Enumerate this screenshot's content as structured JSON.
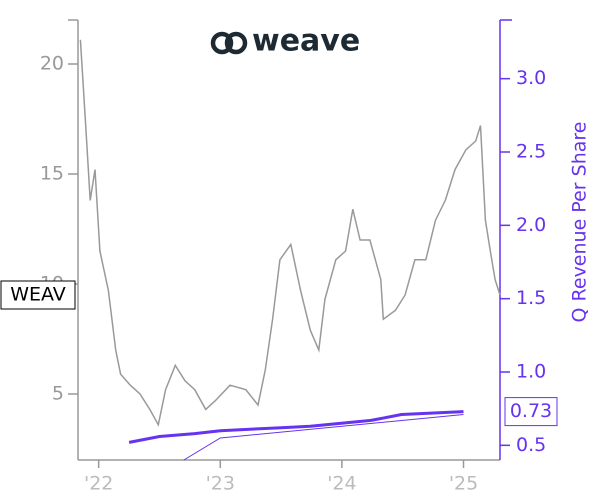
{
  "chart_data": {
    "type": "line",
    "title": "weave",
    "y2label": "Q Revenue Per Share",
    "xlim": [
      2021.83,
      2025.3
    ],
    "xticks": [
      {
        "value": 2022,
        "label": "'22"
      },
      {
        "value": 2023,
        "label": "'23"
      },
      {
        "value": 2024,
        "label": "'24"
      },
      {
        "value": 2025,
        "label": "'25"
      }
    ],
    "ylim": [
      2,
      22
    ],
    "yticks": [
      5,
      10,
      15,
      20
    ],
    "y2lim": [
      0.4,
      3.4
    ],
    "y2ticks": [
      0.5,
      {
        "value": 1,
        "label": "1.0"
      },
      1.5,
      {
        "value": 2,
        "label": "2.0"
      },
      2.5,
      {
        "value": 3,
        "label": "3.0"
      }
    ],
    "series": [
      {
        "name": "WEAV",
        "color": "#999999",
        "width": 1.5,
        "x": [
          2021.85,
          2021.89,
          2021.93,
          2021.97,
          2022.01,
          2022.08,
          2022.14,
          2022.18,
          2022.26,
          2022.34,
          2022.42,
          2022.49,
          2022.55,
          2022.63,
          2022.71,
          2022.79,
          2022.88,
          2022.96,
          2023.08,
          2023.21,
          2023.31,
          2023.37,
          2023.43,
          2023.49,
          2023.58,
          2023.66,
          2023.74,
          2023.81,
          2023.86,
          2023.95,
          2024.03,
          2024.09,
          2024.15,
          2024.23,
          2024.32,
          2024.34,
          2024.44,
          2024.52,
          2024.6,
          2024.69,
          2024.77,
          2024.85,
          2024.93,
          2025.02,
          2025.1,
          2025.14,
          2025.18,
          2025.22,
          2025.26,
          2025.3
        ],
        "values": [
          21.1,
          17.5,
          13.8,
          15.2,
          11.5,
          9.7,
          7.0,
          5.9,
          5.4,
          5.0,
          4.3,
          3.6,
          5.2,
          6.3,
          5.6,
          5.2,
          4.3,
          4.7,
          5.4,
          5.2,
          4.5,
          6.1,
          8.4,
          11.1,
          11.8,
          9.7,
          7.9,
          7.0,
          9.3,
          11.1,
          11.5,
          13.4,
          12.0,
          12.0,
          10.2,
          8.4,
          8.8,
          9.5,
          11.1,
          11.1,
          12.9,
          13.8,
          15.2,
          16.1,
          16.5,
          17.2,
          12.9,
          11.5,
          10.2,
          9.5
        ]
      },
      {
        "color": "#6633ee",
        "width": 3,
        "axis": "y2",
        "x": [
          2022.25,
          2022.5,
          2022.79,
          2023.0,
          2023.5,
          2023.74,
          2024.24,
          2024.49,
          2025.0
        ],
        "values": [
          0.52,
          0.56,
          0.58,
          0.6,
          0.62,
          0.63,
          0.67,
          0.71,
          0.73
        ]
      },
      {
        "color": "#6633ee",
        "width": 1,
        "axis": "y2",
        "x": [
          2022.7,
          2023.0,
          2025.0
        ],
        "values": [
          0.4,
          0.55,
          0.71
        ]
      }
    ]
  }
}
